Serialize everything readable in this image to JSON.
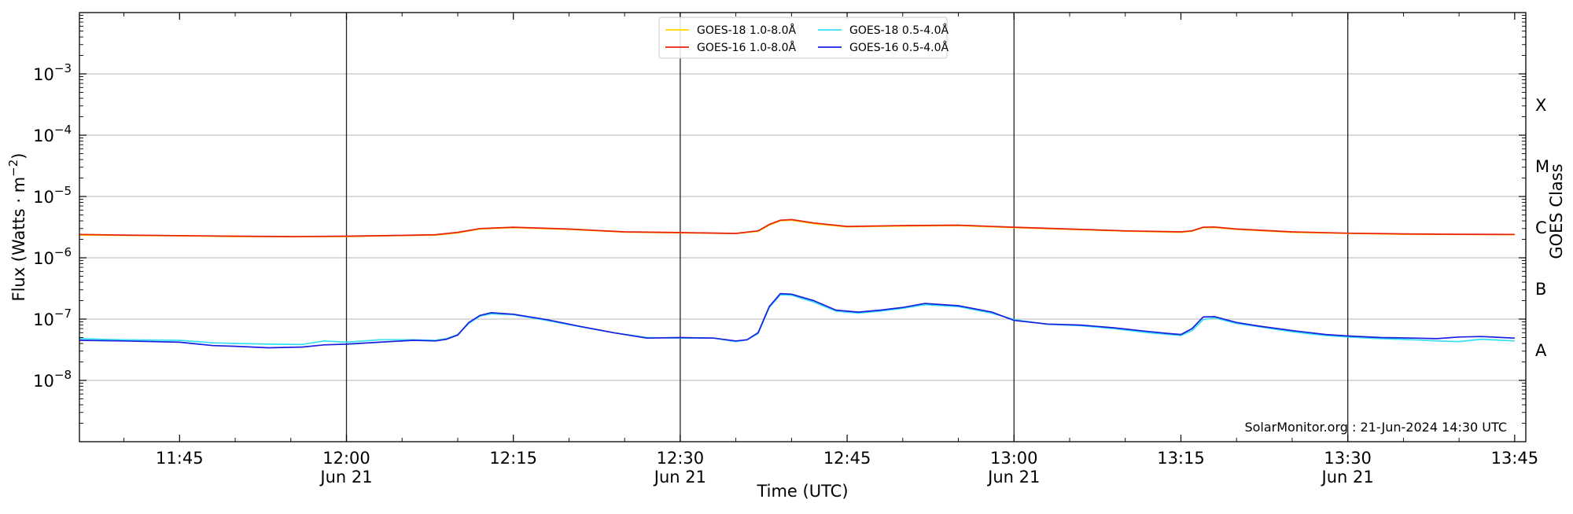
{
  "chart_data": {
    "type": "line",
    "title": "",
    "xlabel": "Time (UTC)",
    "ylabel": "Flux (Watts · m",
    "ylabel_superscript": "−2",
    "ylabel_suffix": ")",
    "ylabel_right": "GOES Class",
    "y_scale": "log",
    "ylim": [
      1e-09,
      0.01
    ],
    "xlim": [
      "11:36",
      "13:46"
    ],
    "grid": "horizontal",
    "legend_position": "top-center",
    "credit": "SolarMonitor.org : 21-Jun-2024 14:30 UTC",
    "x_ticks": [
      {
        "time": "11:45",
        "label": "11:45",
        "sublabel": ""
      },
      {
        "time": "12:00",
        "label": "12:00",
        "sublabel": "Jun 21"
      },
      {
        "time": "12:15",
        "label": "12:15",
        "sublabel": ""
      },
      {
        "time": "12:30",
        "label": "12:30",
        "sublabel": "Jun 21"
      },
      {
        "time": "12:45",
        "label": "12:45",
        "sublabel": ""
      },
      {
        "time": "13:00",
        "label": "13:00",
        "sublabel": "Jun 21"
      },
      {
        "time": "13:15",
        "label": "13:15",
        "sublabel": ""
      },
      {
        "time": "13:30",
        "label": "13:30",
        "sublabel": "Jun 21"
      },
      {
        "time": "13:45",
        "label": "13:45",
        "sublabel": ""
      }
    ],
    "vertical_lines": [
      "12:00",
      "12:30",
      "13:00",
      "13:30"
    ],
    "y_ticks": [
      {
        "value": 1e-08,
        "base": "10",
        "exp": "−8"
      },
      {
        "value": 1e-07,
        "base": "10",
        "exp": "−7"
      },
      {
        "value": 1e-06,
        "base": "10",
        "exp": "−6"
      },
      {
        "value": 1e-05,
        "base": "10",
        "exp": "−5"
      },
      {
        "value": 0.0001,
        "base": "10",
        "exp": "−4"
      },
      {
        "value": 0.001,
        "base": "10",
        "exp": "−3"
      }
    ],
    "goes_classes": [
      {
        "label": "A",
        "value": 3.16e-08
      },
      {
        "label": "B",
        "value": 3.16e-07
      },
      {
        "label": "C",
        "value": 3.16e-06
      },
      {
        "label": "M",
        "value": 3.16e-05
      },
      {
        "label": "X",
        "value": 0.000316
      }
    ],
    "series": [
      {
        "name": "GOES-18 1.0-8.0Å",
        "color": "#ffd400",
        "x": [
          "11:36",
          "11:40",
          "11:45",
          "11:50",
          "11:55",
          "12:00",
          "12:05",
          "12:08",
          "12:10",
          "12:12",
          "12:15",
          "12:20",
          "12:25",
          "12:30",
          "12:35",
          "12:37",
          "12:38",
          "12:39",
          "12:40",
          "12:42",
          "12:45",
          "12:50",
          "12:55",
          "13:00",
          "13:05",
          "13:10",
          "13:15",
          "13:16",
          "13:17",
          "13:18",
          "13:20",
          "13:25",
          "13:30",
          "13:35",
          "13:40",
          "13:45"
        ],
        "y": [
          2.35e-06,
          2.32e-06,
          2.28e-06,
          2.22e-06,
          2.2e-06,
          2.22e-06,
          2.3e-06,
          2.35e-06,
          2.55e-06,
          2.95e-06,
          3.1e-06,
          2.9e-06,
          2.62e-06,
          2.55e-06,
          2.48e-06,
          2.7e-06,
          3.4e-06,
          4e-06,
          4.1e-06,
          3.6e-06,
          3.2e-06,
          3.3e-06,
          3.35e-06,
          3.1e-06,
          2.9e-06,
          2.72e-06,
          2.6e-06,
          2.72e-06,
          3.1e-06,
          3.12e-06,
          2.9e-06,
          2.6e-06,
          2.5e-06,
          2.42e-06,
          2.4e-06,
          2.38e-06
        ]
      },
      {
        "name": "GOES-16 1.0-8.0Å",
        "color": "#e8200f",
        "x": [
          "11:36",
          "11:40",
          "11:45",
          "11:50",
          "11:55",
          "12:00",
          "12:05",
          "12:08",
          "12:10",
          "12:12",
          "12:15",
          "12:20",
          "12:25",
          "12:30",
          "12:35",
          "12:37",
          "12:38",
          "12:39",
          "12:40",
          "12:42",
          "12:45",
          "12:50",
          "12:55",
          "13:00",
          "13:05",
          "13:10",
          "13:15",
          "13:16",
          "13:17",
          "13:18",
          "13:20",
          "13:25",
          "13:30",
          "13:35",
          "13:40",
          "13:45"
        ],
        "y": [
          2.4e-06,
          2.35e-06,
          2.3e-06,
          2.25e-06,
          2.22e-06,
          2.25e-06,
          2.32e-06,
          2.38e-06,
          2.6e-06,
          3e-06,
          3.15e-06,
          2.95e-06,
          2.65e-06,
          2.58e-06,
          2.5e-06,
          2.75e-06,
          3.5e-06,
          4.1e-06,
          4.2e-06,
          3.7e-06,
          3.25e-06,
          3.35e-06,
          3.4e-06,
          3.15e-06,
          2.95e-06,
          2.75e-06,
          2.65e-06,
          2.75e-06,
          3.15e-06,
          3.18e-06,
          2.95e-06,
          2.65e-06,
          2.52e-06,
          2.45e-06,
          2.42e-06,
          2.4e-06
        ]
      },
      {
        "name": "GOES-18 0.5-4.0Å",
        "color": "#33e0f0",
        "x": [
          "11:36",
          "11:40",
          "11:45",
          "11:48",
          "11:50",
          "11:53",
          "11:56",
          "11:58",
          "12:00",
          "12:03",
          "12:06",
          "12:08",
          "12:09",
          "12:10",
          "12:11",
          "12:12",
          "12:13",
          "12:15",
          "12:18",
          "12:21",
          "12:24",
          "12:27",
          "12:30",
          "12:33",
          "12:35",
          "12:36",
          "12:37",
          "12:38",
          "12:39",
          "12:40",
          "12:42",
          "12:44",
          "12:46",
          "12:48",
          "12:50",
          "12:52",
          "12:55",
          "12:58",
          "13:00",
          "13:03",
          "13:06",
          "13:09",
          "13:12",
          "13:14",
          "13:15",
          "13:16",
          "13:17",
          "13:18",
          "13:20",
          "13:22",
          "13:25",
          "13:28",
          "13:30",
          "13:33",
          "13:36",
          "13:38",
          "13:40",
          "13:42",
          "13:45"
        ],
        "y": [
          4.8e-08,
          4.6e-08,
          4.5e-08,
          4.1e-08,
          4e-08,
          3.9e-08,
          3.85e-08,
          4.4e-08,
          4.2e-08,
          4.6e-08,
          4.6e-08,
          4.5e-08,
          4.8e-08,
          5.6e-08,
          8.5e-08,
          1.12e-07,
          1.22e-07,
          1.18e-07,
          9.5e-08,
          7.5e-08,
          6e-08,
          5e-08,
          4.9e-08,
          4.9e-08,
          4.3e-08,
          4.6e-08,
          5.8e-08,
          1.55e-07,
          2.5e-07,
          2.45e-07,
          1.9e-07,
          1.35e-07,
          1.25e-07,
          1.35e-07,
          1.5e-07,
          1.72e-07,
          1.6e-07,
          1.25e-07,
          9.8e-08,
          8.2e-08,
          7.8e-08,
          7e-08,
          6e-08,
          5.6e-08,
          5.4e-08,
          6.5e-08,
          9.8e-08,
          1.05e-07,
          8.5e-08,
          7.5e-08,
          6.2e-08,
          5.4e-08,
          5.1e-08,
          4.8e-08,
          4.6e-08,
          4.4e-08,
          4.3e-08,
          4.7e-08,
          4.4e-08
        ]
      },
      {
        "name": "GOES-16 0.5-4.0Å",
        "color": "#1a1ee0",
        "x": [
          "11:36",
          "11:40",
          "11:45",
          "11:48",
          "11:50",
          "11:53",
          "11:56",
          "11:58",
          "12:00",
          "12:03",
          "12:06",
          "12:08",
          "12:09",
          "12:10",
          "12:11",
          "12:12",
          "12:13",
          "12:15",
          "12:18",
          "12:21",
          "12:24",
          "12:27",
          "12:30",
          "12:33",
          "12:35",
          "12:36",
          "12:37",
          "12:38",
          "12:39",
          "12:40",
          "12:42",
          "12:44",
          "12:46",
          "12:48",
          "12:50",
          "12:52",
          "12:55",
          "12:58",
          "13:00",
          "13:03",
          "13:06",
          "13:09",
          "13:12",
          "13:14",
          "13:15",
          "13:16",
          "13:17",
          "13:18",
          "13:20",
          "13:22",
          "13:25",
          "13:28",
          "13:30",
          "13:33",
          "13:36",
          "13:38",
          "13:40",
          "13:42",
          "13:45"
        ],
        "y": [
          4.5e-08,
          4.4e-08,
          4.2e-08,
          3.7e-08,
          3.6e-08,
          3.4e-08,
          3.5e-08,
          3.8e-08,
          3.9e-08,
          4.2e-08,
          4.5e-08,
          4.4e-08,
          4.7e-08,
          5.5e-08,
          8.8e-08,
          1.15e-07,
          1.27e-07,
          1.2e-07,
          9.8e-08,
          7.6e-08,
          6e-08,
          4.9e-08,
          5e-08,
          4.9e-08,
          4.4e-08,
          4.6e-08,
          6e-08,
          1.6e-07,
          2.6e-07,
          2.55e-07,
          2e-07,
          1.4e-07,
          1.3e-07,
          1.4e-07,
          1.55e-07,
          1.8e-07,
          1.65e-07,
          1.3e-07,
          9.5e-08,
          8.3e-08,
          8e-08,
          7.2e-08,
          6.3e-08,
          5.8e-08,
          5.6e-08,
          7e-08,
          1.08e-07,
          1.1e-07,
          8.8e-08,
          7.7e-08,
          6.5e-08,
          5.6e-08,
          5.3e-08,
          5e-08,
          4.9e-08,
          4.8e-08,
          5.1e-08,
          5.2e-08,
          4.9e-08
        ]
      }
    ]
  }
}
